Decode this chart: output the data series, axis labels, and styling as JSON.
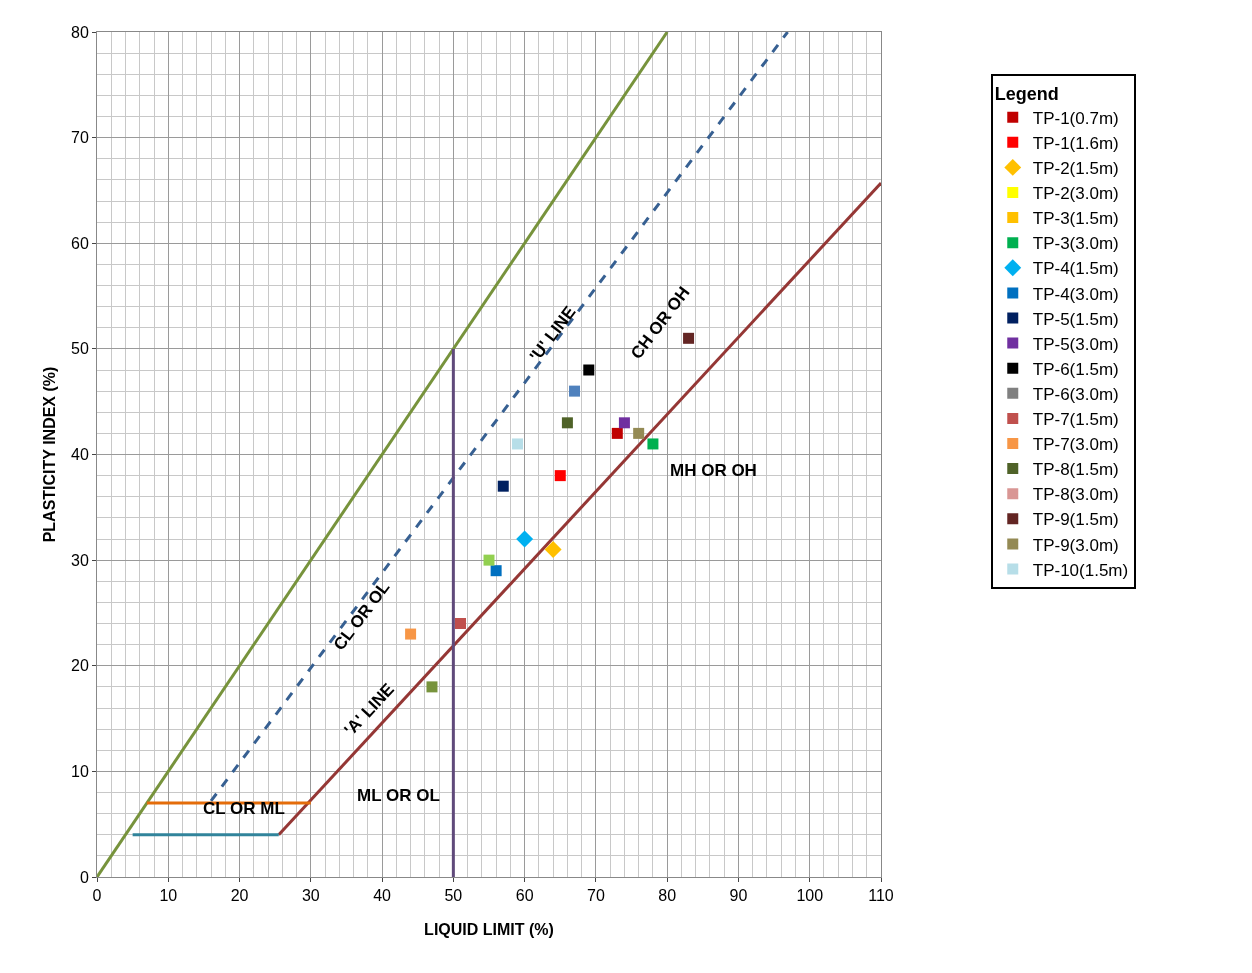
{
  "chart_data": {
    "type": "scatter",
    "xlabel": "LIQUID LIMIT (%)",
    "ylabel": "PLASTICITY INDEX (%)",
    "legend_title": "Legend",
    "xlim": [
      0,
      110
    ],
    "xticks": [
      0,
      10,
      20,
      30,
      40,
      50,
      60,
      70,
      80,
      90,
      100,
      110
    ],
    "ylim": [
      0,
      80
    ],
    "yticks": [
      0,
      10,
      20,
      30,
      40,
      50,
      60,
      70,
      80
    ],
    "grid": true,
    "legend": "right",
    "marker": "square",
    "series": [
      {
        "name": "TP-1(0.7m)",
        "color": "#c00000",
        "x": [
          73
        ],
        "values": [
          42
        ]
      },
      {
        "name": "TP-1(1.6m)",
        "color": "#ff0000",
        "x": [
          65
        ],
        "values": [
          38
        ]
      },
      {
        "name": "TP-2(1.5m)",
        "color": "#ffc000",
        "x": [
          64
        ],
        "values": [
          31
        ],
        "marker": "diamond"
      },
      {
        "name": "TP-2(3.0m)",
        "color": "#ffff00",
        "x": [
          null
        ],
        "values": [
          null
        ]
      },
      {
        "name": "TP-3(1.5m)",
        "color": "#ffc000",
        "x": [
          null
        ],
        "values": [
          null
        ]
      },
      {
        "name": "TP-3(3.0m)",
        "color": "#00b050",
        "x": [
          78
        ],
        "values": [
          41
        ]
      },
      {
        "name": "TP-4(1.5m)",
        "color": "#00b0f0",
        "x": [
          60
        ],
        "values": [
          32
        ],
        "marker": "diamond"
      },
      {
        "name": "TP-4(3.0m)",
        "color": "#0070c0",
        "x": [
          56
        ],
        "values": [
          29
        ]
      },
      {
        "name": "TP-5(1.5m)",
        "color": "#002060",
        "x": [
          57
        ],
        "values": [
          37
        ]
      },
      {
        "name": "TP-5(3.0m)",
        "color": "#7030a0",
        "x": [
          74
        ],
        "values": [
          43
        ]
      },
      {
        "name": "TP-6(1.5m)",
        "color": "#000000",
        "x": [
          69
        ],
        "values": [
          48
        ]
      },
      {
        "name": "TP-6(3.0m)",
        "color": "#808080",
        "x": [
          null
        ],
        "values": [
          null
        ]
      },
      {
        "name": "TP-7(1.5m)",
        "color": "#c0504d",
        "x": [
          51
        ],
        "values": [
          24
        ]
      },
      {
        "name": "TP-7(3.0m)",
        "color": "#f79646",
        "x": [
          44
        ],
        "values": [
          23
        ]
      },
      {
        "name": "TP-8(1.5m)",
        "color": "#4f6228",
        "x": [
          66
        ],
        "values": [
          43
        ]
      },
      {
        "name": "TP-8(3.0m)",
        "color": "#d99694",
        "x": [
          null
        ],
        "values": [
          null
        ]
      },
      {
        "name": "TP-9(1.5m)",
        "color": "#632523",
        "x": [
          83
        ],
        "values": [
          51
        ]
      },
      {
        "name": "TP-9(3.0m)",
        "color": "#948a54",
        "x": [
          76
        ],
        "values": [
          42
        ]
      },
      {
        "name": "TP-10(1.5m)",
        "color": "#b7dee8",
        "x": [
          59
        ],
        "values": [
          41
        ]
      },
      {
        "color": "#4f81bd",
        "x": [
          67
        ],
        "values": [
          46
        ]
      },
      {
        "color": "#92d050",
        "x": [
          55
        ],
        "values": [
          30
        ]
      },
      {
        "color": "#77933c",
        "x": [
          47
        ],
        "values": [
          18
        ]
      },
      {
        "type": "line",
        "color": "#77933c",
        "marker": "none",
        "x": [
          0,
          80
        ],
        "values": [
          0,
          80
        ]
      },
      {
        "type": "line",
        "color": "#376092",
        "marker": "none",
        "line_style": "dashed",
        "x": [
          16,
          96.9
        ],
        "values": [
          7.2,
          80
        ]
      },
      {
        "type": "line",
        "color": "#953735",
        "marker": "none",
        "x": [
          25.5,
          110
        ],
        "values": [
          4,
          65.7
        ]
      },
      {
        "type": "line",
        "color": "#604a7b",
        "marker": "none",
        "x": [
          50,
          50
        ],
        "values": [
          0,
          50
        ]
      },
      {
        "type": "line",
        "color": "#e46c0a",
        "marker": "none",
        "x": [
          7,
          30
        ],
        "values": [
          7,
          7
        ]
      },
      {
        "type": "line",
        "color": "#31849b",
        "marker": "none",
        "x": [
          5,
          25.5
        ],
        "values": [
          4,
          4
        ]
      }
    ],
    "annotations": [
      "'U' LINE",
      "CH OR OH",
      "CL OR OL",
      "'A' LINE",
      "MH OR OH",
      "ML OR OL",
      "CL OR ML"
    ]
  }
}
